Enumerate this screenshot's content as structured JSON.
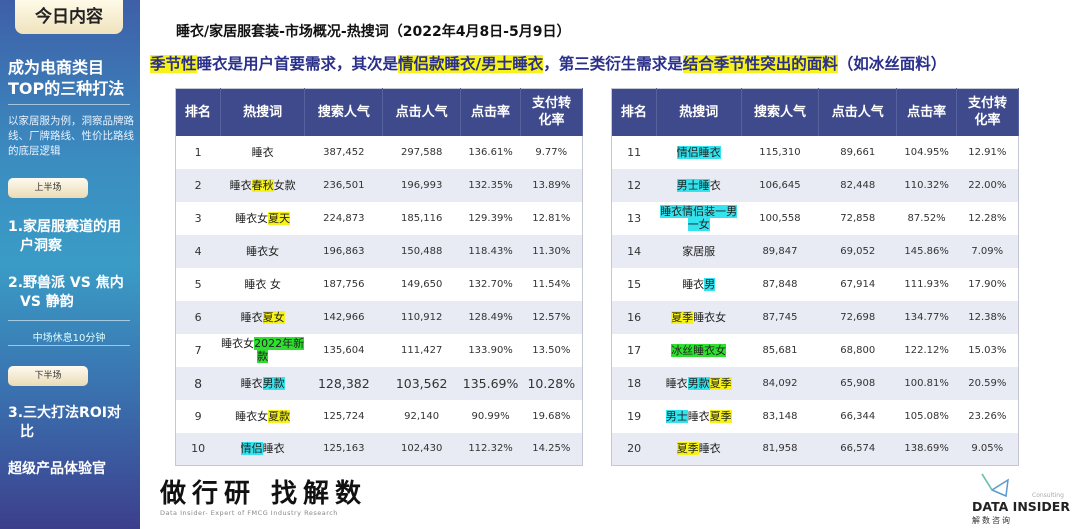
{
  "sidebar": {
    "title": "今日内容",
    "heading": "成为电商类目TOP的三种打法",
    "description": "以家居服为例，洞察品牌路线、厂牌路线、性价比路线的底层逻辑",
    "first_half": "上半场",
    "item1_a": "1.家居服赛道的用",
    "item1_b": "户洞察",
    "item2_a": "2.野兽派 VS 焦内",
    "item2_b": "VS 静韵",
    "break": "中场休息10分钟",
    "second_half": "下半场",
    "item3_a": "3.三大打法ROI对",
    "item3_b": "比",
    "item4": "超级产品体验官"
  },
  "main": {
    "title": "睡衣/家居服套装-市场概况-热搜词（2022年4月8日-5月9日）",
    "headline": [
      {
        "t": "季节性",
        "hl": "y"
      },
      {
        "t": "睡衣是用户首要需求，其次是",
        "hl": ""
      },
      {
        "t": "情侣款睡衣/男士睡衣",
        "hl": "y"
      },
      {
        "t": "，第三类衍生需求是",
        "hl": ""
      },
      {
        "t": "结合季节性突出的面料",
        "hl": "y"
      },
      {
        "t": "（如冰丝面料）",
        "hl": ""
      }
    ]
  },
  "colors": {
    "header": "#3e4a8c",
    "highlight_yellow": "#f6f21a",
    "highlight_cyan": "#33e4ee",
    "highlight_green": "#2ee02e"
  },
  "table": {
    "headers": [
      "排名",
      "热搜词",
      "搜索人气",
      "点击人气",
      "点击率",
      "支付转化率"
    ],
    "rows": [
      {
        "rank": "1",
        "kw": [
          {
            "t": "睡衣",
            "hl": ""
          }
        ],
        "search": "387,452",
        "click": "297,588",
        "ctr": "136.61%",
        "pay": "9.77%"
      },
      {
        "rank": "2",
        "kw": [
          {
            "t": "睡衣",
            "hl": ""
          },
          {
            "t": "春秋",
            "hl": "y"
          },
          {
            "t": "女款",
            "hl": ""
          }
        ],
        "search": "236,501",
        "click": "196,993",
        "ctr": "132.35%",
        "pay": "13.89%"
      },
      {
        "rank": "3",
        "kw": [
          {
            "t": "睡衣女",
            "hl": ""
          },
          {
            "t": "夏天",
            "hl": "y"
          }
        ],
        "search": "224,873",
        "click": "185,116",
        "ctr": "129.39%",
        "pay": "12.81%"
      },
      {
        "rank": "4",
        "kw": [
          {
            "t": "睡衣女",
            "hl": ""
          }
        ],
        "search": "196,863",
        "click": "150,488",
        "ctr": "118.43%",
        "pay": "11.30%"
      },
      {
        "rank": "5",
        "kw": [
          {
            "t": "睡衣 女",
            "hl": ""
          }
        ],
        "search": "187,756",
        "click": "149,650",
        "ctr": "132.70%",
        "pay": "11.54%"
      },
      {
        "rank": "6",
        "kw": [
          {
            "t": "睡衣",
            "hl": ""
          },
          {
            "t": "夏女",
            "hl": "y"
          }
        ],
        "search": "142,966",
        "click": "110,912",
        "ctr": "128.49%",
        "pay": "12.57%"
      },
      {
        "rank": "7",
        "kw": [
          {
            "t": "睡衣女",
            "hl": ""
          },
          {
            "t": "2022年新款",
            "hl": "g"
          }
        ],
        "search": "135,604",
        "click": "111,427",
        "ctr": "133.90%",
        "pay": "13.50%"
      },
      {
        "rank": "8",
        "kw": [
          {
            "t": "睡衣",
            "hl": ""
          },
          {
            "t": "男款",
            "hl": "c"
          }
        ],
        "search": "128,382",
        "click": "103,562",
        "ctr": "135.69%",
        "pay": "10.28%"
      },
      {
        "rank": "9",
        "kw": [
          {
            "t": "睡衣女",
            "hl": ""
          },
          {
            "t": "夏款",
            "hl": "y"
          }
        ],
        "search": "125,724",
        "click": "92,140",
        "ctr": "90.99%",
        "pay": "19.68%"
      },
      {
        "rank": "10",
        "kw": [
          {
            "t": "情侣",
            "hl": "c"
          },
          {
            "t": "睡衣",
            "hl": ""
          }
        ],
        "search": "125,163",
        "click": "102,430",
        "ctr": "112.32%",
        "pay": "14.25%"
      },
      {
        "rank": "11",
        "kw": [
          {
            "t": "情侣睡衣",
            "hl": "c"
          }
        ],
        "search": "115,310",
        "click": "89,661",
        "ctr": "104.95%",
        "pay": "12.91%"
      },
      {
        "rank": "12",
        "kw": [
          {
            "t": "男士睡",
            "hl": "c"
          },
          {
            "t": "衣",
            "hl": ""
          }
        ],
        "search": "106,645",
        "click": "82,448",
        "ctr": "110.32%",
        "pay": "22.00%"
      },
      {
        "rank": "13",
        "kw": [
          {
            "t": "睡衣情侣装一男一女",
            "hl": "c"
          }
        ],
        "search": "100,558",
        "click": "72,858",
        "ctr": "87.52%",
        "pay": "12.28%"
      },
      {
        "rank": "14",
        "kw": [
          {
            "t": "家居服",
            "hl": ""
          }
        ],
        "search": "89,847",
        "click": "69,052",
        "ctr": "145.86%",
        "pay": "7.09%"
      },
      {
        "rank": "15",
        "kw": [
          {
            "t": "睡衣",
            "hl": ""
          },
          {
            "t": "男",
            "hl": "c"
          }
        ],
        "search": "87,848",
        "click": "67,914",
        "ctr": "111.93%",
        "pay": "17.90%"
      },
      {
        "rank": "16",
        "kw": [
          {
            "t": "夏季",
            "hl": "y"
          },
          {
            "t": "睡衣女",
            "hl": ""
          }
        ],
        "search": "87,745",
        "click": "72,698",
        "ctr": "134.77%",
        "pay": "12.38%"
      },
      {
        "rank": "17",
        "kw": [
          {
            "t": "冰丝睡衣女",
            "hl": "g"
          }
        ],
        "search": "85,681",
        "click": "68,800",
        "ctr": "122.12%",
        "pay": "15.03%"
      },
      {
        "rank": "18",
        "kw": [
          {
            "t": "睡衣",
            "hl": ""
          },
          {
            "t": "男款",
            "hl": "c"
          },
          {
            "t": "夏季",
            "hl": "y"
          }
        ],
        "search": "84,092",
        "click": "65,908",
        "ctr": "100.81%",
        "pay": "20.59%"
      },
      {
        "rank": "19",
        "kw": [
          {
            "t": "男士",
            "hl": "c"
          },
          {
            "t": "睡衣",
            "hl": ""
          },
          {
            "t": "夏季",
            "hl": "y"
          }
        ],
        "search": "83,148",
        "click": "66,344",
        "ctr": "105.08%",
        "pay": "23.26%"
      },
      {
        "rank": "20",
        "kw": [
          {
            "t": "夏季",
            "hl": "y"
          },
          {
            "t": "睡衣",
            "hl": ""
          }
        ],
        "search": "81,958",
        "click": "66,574",
        "ctr": "138.69%",
        "pay": "9.05%"
      }
    ]
  },
  "footer": {
    "slogan": "做行研 找解数",
    "slogan_en": "Data Insider- Expert of FMCG Industry Research",
    "brand": "DATA INSIDER",
    "brand_cn": "解数咨询",
    "brand_tag": "Consulting"
  }
}
